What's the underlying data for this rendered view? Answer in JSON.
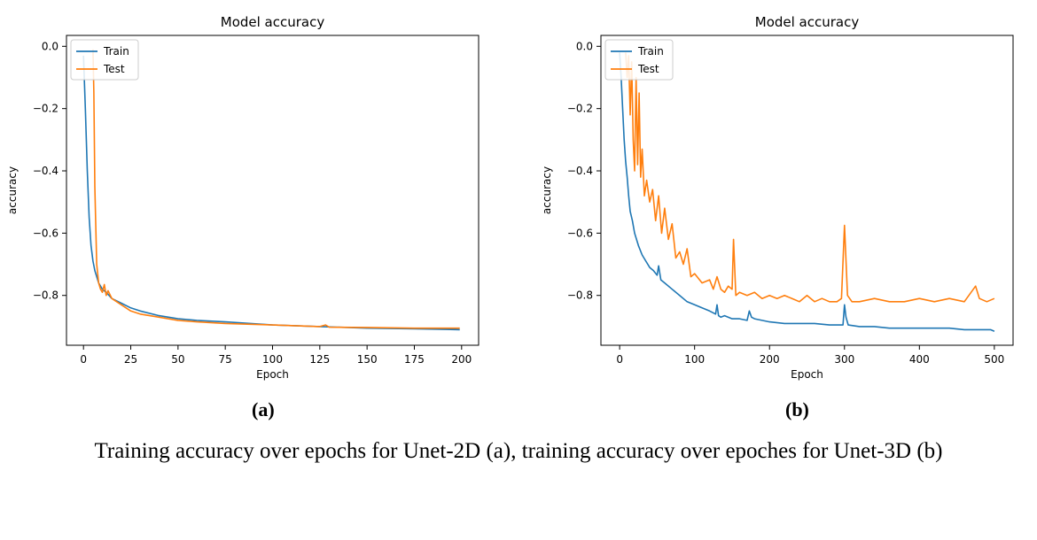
{
  "panels": [
    {
      "label": "(a)",
      "chart_data": {
        "type": "line",
        "title": "Model accuracy",
        "xlabel": "Epoch",
        "ylabel": "accuracy",
        "xlim": [
          -9,
          209
        ],
        "ylim": [
          -0.96,
          0.035
        ],
        "xticks": [
          0,
          25,
          50,
          75,
          100,
          125,
          150,
          175,
          200
        ],
        "yticks": [
          0.0,
          -0.2,
          -0.4,
          -0.6,
          -0.8
        ],
        "ytick_labels": [
          "0.0",
          "−0.2",
          "−0.4",
          "−0.6",
          "−0.8"
        ],
        "legend": "upper left",
        "grid": false,
        "series": [
          {
            "name": "Train",
            "color": "#1f77b4",
            "x": [
              0,
              1,
              2,
              3,
              4,
              5,
              6,
              8,
              10,
              12,
              15,
              20,
              25,
              30,
              40,
              50,
              60,
              75,
              100,
              125,
              150,
              175,
              199
            ],
            "y": [
              -0.03,
              -0.2,
              -0.4,
              -0.55,
              -0.64,
              -0.69,
              -0.72,
              -0.76,
              -0.78,
              -0.79,
              -0.81,
              -0.825,
              -0.84,
              -0.85,
              -0.865,
              -0.875,
              -0.88,
              -0.885,
              -0.895,
              -0.9,
              -0.905,
              -0.907,
              -0.91
            ]
          },
          {
            "name": "Test",
            "color": "#ff7f0e",
            "x": [
              5,
              5.5,
              6,
              7,
              8,
              9,
              10,
              11,
              12,
              13,
              15,
              20,
              25,
              30,
              40,
              50,
              60,
              75,
              100,
              125,
              128,
              130,
              150,
              175,
              199
            ],
            "y": [
              -0.01,
              -0.15,
              -0.45,
              -0.7,
              -0.76,
              -0.78,
              -0.79,
              -0.765,
              -0.8,
              -0.785,
              -0.81,
              -0.83,
              -0.85,
              -0.86,
              -0.87,
              -0.88,
              -0.885,
              -0.89,
              -0.895,
              -0.9,
              -0.895,
              -0.902,
              -0.903,
              -0.905,
              -0.905
            ]
          }
        ]
      }
    },
    {
      "label": "(b)",
      "chart_data": {
        "type": "line",
        "title": "Model accuracy",
        "xlabel": "Epoch",
        "ylabel": "accuracy",
        "xlim": [
          -25,
          525
        ],
        "ylim": [
          -0.96,
          0.035
        ],
        "xticks": [
          0,
          100,
          200,
          300,
          400,
          500
        ],
        "yticks": [
          0.0,
          -0.2,
          -0.4,
          -0.6,
          -0.8
        ],
        "ytick_labels": [
          "0.0",
          "−0.2",
          "−0.4",
          "−0.6",
          "−0.8"
        ],
        "legend": "upper left",
        "grid": false,
        "series": [
          {
            "name": "Train",
            "color": "#1f77b4",
            "x": [
              0,
              2,
              4,
              6,
              8,
              10,
              12,
              14,
              17,
              20,
              25,
              30,
              35,
              40,
              45,
              50,
              52,
              55,
              60,
              70,
              80,
              90,
              100,
              110,
              120,
              128,
              130,
              132,
              135,
              140,
              150,
              160,
              170,
              173,
              176,
              180,
              190,
              200,
              220,
              240,
              260,
              280,
              298,
              300,
              302,
              305,
              320,
              340,
              360,
              380,
              400,
              420,
              440,
              460,
              480,
              495,
              500
            ],
            "y": [
              -0.02,
              -0.1,
              -0.2,
              -0.3,
              -0.37,
              -0.42,
              -0.48,
              -0.53,
              -0.56,
              -0.6,
              -0.64,
              -0.67,
              -0.69,
              -0.71,
              -0.72,
              -0.735,
              -0.705,
              -0.75,
              -0.76,
              -0.78,
              -0.8,
              -0.82,
              -0.83,
              -0.84,
              -0.85,
              -0.86,
              -0.83,
              -0.865,
              -0.87,
              -0.865,
              -0.875,
              -0.875,
              -0.88,
              -0.85,
              -0.87,
              -0.875,
              -0.88,
              -0.885,
              -0.89,
              -0.89,
              -0.89,
              -0.895,
              -0.895,
              -0.83,
              -0.87,
              -0.895,
              -0.9,
              -0.9,
              -0.905,
              -0.905,
              -0.905,
              -0.905,
              -0.905,
              -0.91,
              -0.91,
              -0.91,
              -0.915
            ]
          },
          {
            "name": "Test",
            "color": "#ff7f0e",
            "x": [
              8,
              10,
              12,
              14,
              16,
              18,
              20,
              22,
              24,
              26,
              28,
              30,
              33,
              36,
              40,
              44,
              48,
              52,
              56,
              60,
              65,
              70,
              75,
              80,
              85,
              90,
              95,
              100,
              110,
              120,
              125,
              130,
              135,
              140,
              145,
              150,
              152,
              155,
              160,
              170,
              180,
              190,
              200,
              210,
              220,
              230,
              240,
              250,
              260,
              270,
              280,
              290,
              296,
              300,
              304,
              310,
              320,
              340,
              360,
              380,
              400,
              420,
              440,
              460,
              475,
              480,
              490,
              500
            ],
            "y": [
              -0.02,
              -0.1,
              -0.03,
              -0.22,
              -0.05,
              -0.3,
              -0.4,
              -0.1,
              -0.38,
              -0.15,
              -0.42,
              -0.33,
              -0.48,
              -0.43,
              -0.5,
              -0.46,
              -0.56,
              -0.48,
              -0.6,
              -0.52,
              -0.62,
              -0.57,
              -0.68,
              -0.66,
              -0.7,
              -0.65,
              -0.74,
              -0.73,
              -0.76,
              -0.75,
              -0.78,
              -0.74,
              -0.78,
              -0.79,
              -0.77,
              -0.78,
              -0.62,
              -0.8,
              -0.79,
              -0.8,
              -0.79,
              -0.81,
              -0.8,
              -0.81,
              -0.8,
              -0.81,
              -0.82,
              -0.8,
              -0.82,
              -0.81,
              -0.82,
              -0.82,
              -0.81,
              -0.575,
              -0.8,
              -0.82,
              -0.82,
              -0.81,
              -0.82,
              -0.82,
              -0.81,
              -0.82,
              -0.81,
              -0.82,
              -0.77,
              -0.81,
              -0.82,
              -0.81
            ]
          }
        ]
      }
    }
  ],
  "caption": "Training accuracy over epochs for Unet-2D (a), training accuracy over epoches for Unet-3D (b)"
}
